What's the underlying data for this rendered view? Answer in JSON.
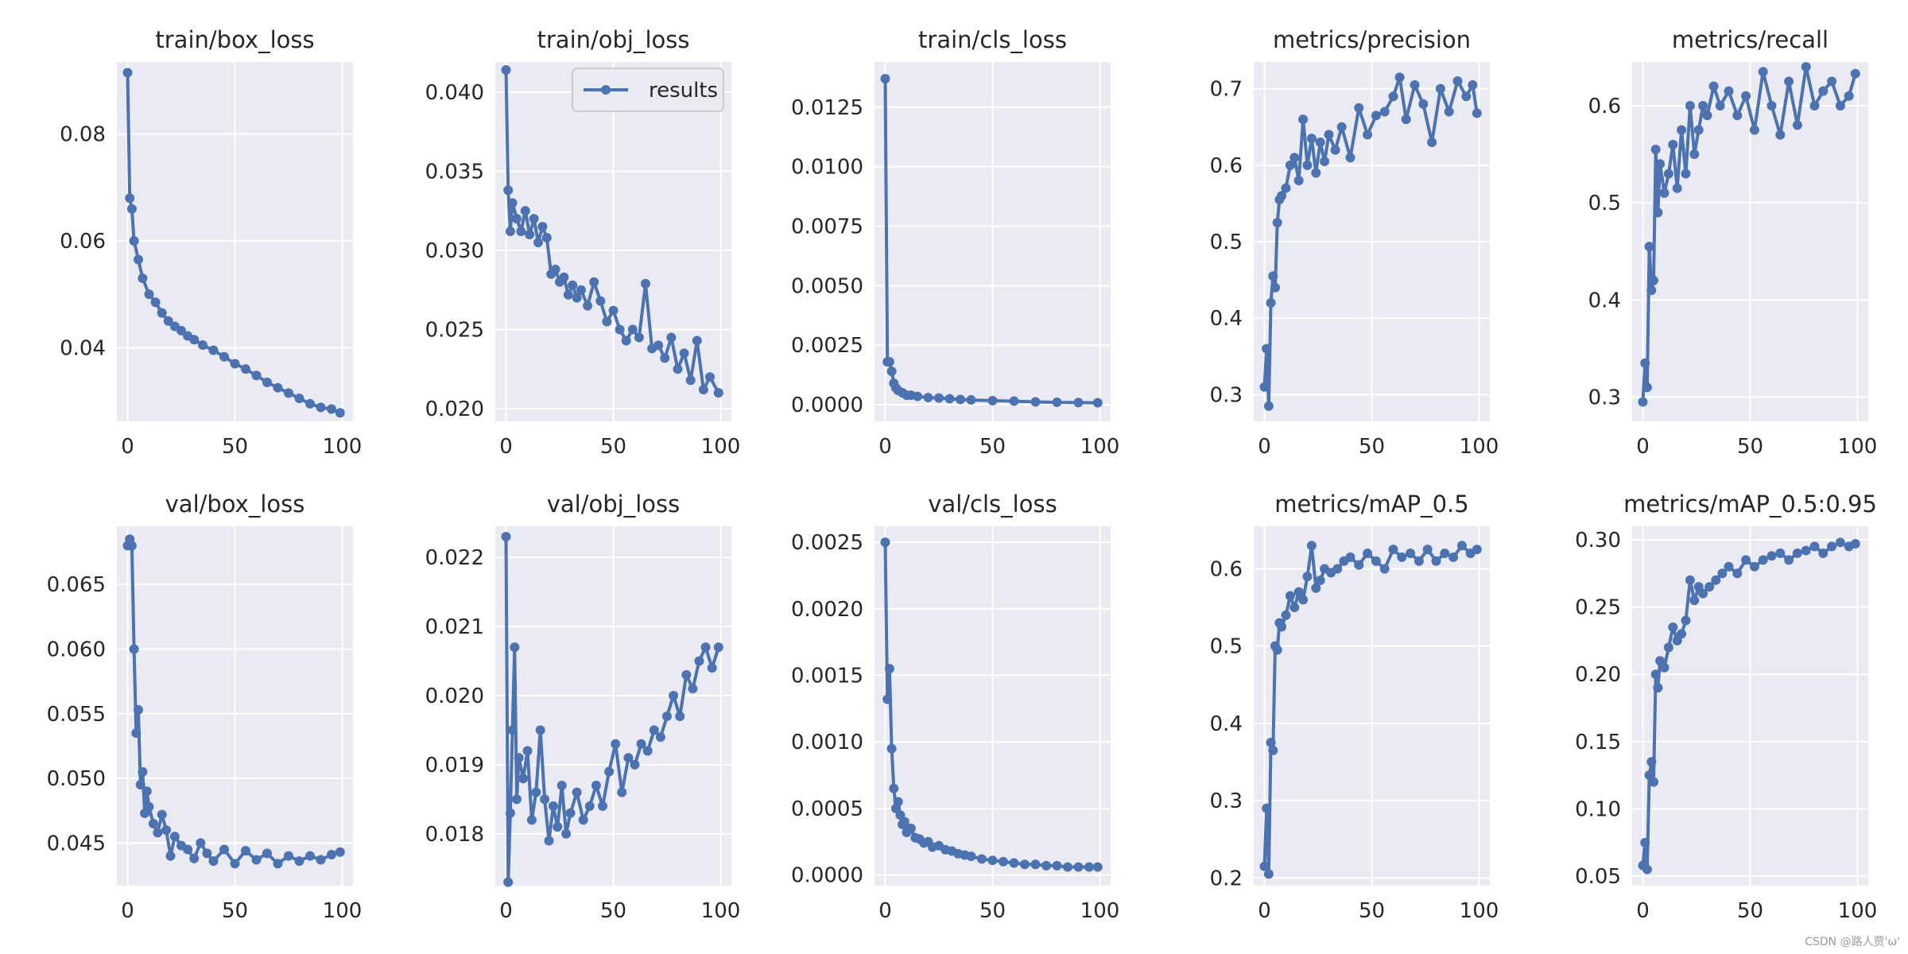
{
  "figure": {
    "watermark": "CSDN @路人贾'ω'",
    "line_color": "#4c72b0",
    "plot_bg": "#eaeaf2",
    "grid_color": "#ffffff"
  },
  "chart_data": [
    {
      "type": "line",
      "title": "train/box_loss",
      "xlabel": "",
      "ylabel": "",
      "xlim": [
        -5,
        105
      ],
      "ylim": [
        0.0262,
        0.0935
      ],
      "xticks": [
        0,
        50,
        100
      ],
      "xtick_labels": [
        "0",
        "50",
        "100"
      ],
      "yticks": [
        0.04,
        0.06,
        0.08
      ],
      "ytick_labels": [
        "0.04",
        "0.06",
        "0.08"
      ],
      "legend": [],
      "series": [
        {
          "name": "results",
          "x": [
            0,
            1,
            2,
            3,
            5,
            7,
            10,
            13,
            16,
            19,
            22,
            25,
            28,
            31,
            35,
            40,
            45,
            50,
            55,
            60,
            65,
            70,
            75,
            80,
            85,
            90,
            95,
            99
          ],
          "values": [
            0.0915,
            0.068,
            0.066,
            0.06,
            0.0565,
            0.053,
            0.05,
            0.0485,
            0.0465,
            0.045,
            0.044,
            0.0432,
            0.0422,
            0.0415,
            0.0405,
            0.0395,
            0.0383,
            0.037,
            0.036,
            0.0348,
            0.0335,
            0.0325,
            0.0315,
            0.0305,
            0.0295,
            0.0288,
            0.0285,
            0.0278
          ]
        }
      ]
    },
    {
      "type": "line",
      "title": "train/obj_loss",
      "xlabel": "",
      "ylabel": "",
      "xlim": [
        -5,
        105
      ],
      "ylim": [
        0.0192,
        0.0419
      ],
      "xticks": [
        0,
        50,
        100
      ],
      "xtick_labels": [
        "0",
        "50",
        "100"
      ],
      "yticks": [
        0.02,
        0.025,
        0.03,
        0.035,
        0.04
      ],
      "ytick_labels": [
        "0.020",
        "0.025",
        "0.030",
        "0.035",
        "0.040"
      ],
      "legend": [
        "results"
      ],
      "series": [
        {
          "name": "results",
          "x": [
            0,
            1,
            2,
            3,
            5,
            7,
            9,
            11,
            13,
            15,
            17,
            19,
            21,
            23,
            25,
            27,
            29,
            31,
            33,
            35,
            38,
            41,
            44,
            47,
            50,
            53,
            56,
            59,
            62,
            65,
            68,
            71,
            74,
            77,
            80,
            83,
            86,
            89,
            92,
            95,
            99
          ],
          "values": [
            0.0414,
            0.0338,
            0.0312,
            0.033,
            0.032,
            0.0312,
            0.0325,
            0.031,
            0.032,
            0.0305,
            0.0315,
            0.0308,
            0.0285,
            0.0288,
            0.028,
            0.0283,
            0.0272,
            0.0278,
            0.027,
            0.0275,
            0.0265,
            0.028,
            0.0268,
            0.0255,
            0.0262,
            0.025,
            0.0243,
            0.025,
            0.0245,
            0.0279,
            0.0238,
            0.024,
            0.0232,
            0.0245,
            0.0225,
            0.0235,
            0.0218,
            0.0243,
            0.0212,
            0.022,
            0.021
          ]
        }
      ]
    },
    {
      "type": "line",
      "title": "train/cls_loss",
      "xlabel": "",
      "ylabel": "",
      "xlim": [
        -5,
        105
      ],
      "ylim": [
        -0.0007,
        0.0144
      ],
      "xticks": [
        0,
        50,
        100
      ],
      "xtick_labels": [
        "0",
        "50",
        "100"
      ],
      "yticks": [
        0,
        0.0025,
        0.005,
        0.0075,
        0.01,
        0.0125
      ],
      "ytick_labels": [
        "0.0000",
        "0.0025",
        "0.0050",
        "0.0075",
        "0.0100",
        "0.0125"
      ],
      "legend": [],
      "series": [
        {
          "name": "results",
          "x": [
            0,
            1,
            2,
            3,
            4,
            5,
            6,
            8,
            10,
            12,
            15,
            20,
            25,
            30,
            35,
            40,
            50,
            60,
            70,
            80,
            90,
            99
          ],
          "values": [
            0.0137,
            0.0018,
            0.0018,
            0.0014,
            0.0009,
            0.0007,
            0.0006,
            0.0005,
            0.0004,
            0.0004,
            0.00035,
            0.0003,
            0.00028,
            0.00025,
            0.00022,
            0.0002,
            0.00017,
            0.00015,
            0.00012,
            0.0001,
            9e-05,
            8e-05
          ]
        }
      ]
    },
    {
      "type": "line",
      "title": "metrics/precision",
      "xlabel": "",
      "ylabel": "",
      "xlim": [
        -5,
        105
      ],
      "ylim": [
        0.265,
        0.735
      ],
      "xticks": [
        0,
        50,
        100
      ],
      "xtick_labels": [
        "0",
        "50",
        "100"
      ],
      "yticks": [
        0.3,
        0.4,
        0.5,
        0.6,
        0.7
      ],
      "ytick_labels": [
        "0.3",
        "0.4",
        "0.5",
        "0.6",
        "0.7"
      ],
      "legend": [],
      "series": [
        {
          "name": "results",
          "x": [
            0,
            1,
            2,
            3,
            4,
            5,
            6,
            7,
            8,
            10,
            12,
            14,
            16,
            18,
            20,
            22,
            24,
            26,
            28,
            30,
            33,
            36,
            40,
            44,
            48,
            52,
            56,
            60,
            63,
            66,
            70,
            74,
            78,
            82,
            86,
            90,
            94,
            97,
            99
          ],
          "values": [
            0.31,
            0.36,
            0.285,
            0.42,
            0.455,
            0.44,
            0.525,
            0.555,
            0.56,
            0.57,
            0.6,
            0.61,
            0.58,
            0.66,
            0.6,
            0.635,
            0.59,
            0.63,
            0.605,
            0.64,
            0.62,
            0.65,
            0.61,
            0.675,
            0.64,
            0.665,
            0.67,
            0.69,
            0.715,
            0.66,
            0.705,
            0.68,
            0.63,
            0.7,
            0.67,
            0.71,
            0.69,
            0.705,
            0.668
          ]
        }
      ]
    },
    {
      "type": "line",
      "title": "metrics/recall",
      "xlabel": "",
      "ylabel": "",
      "xlim": [
        -5,
        105
      ],
      "ylim": [
        0.275,
        0.645
      ],
      "xticks": [
        0,
        50,
        100
      ],
      "xtick_labels": [
        "0",
        "50",
        "100"
      ],
      "yticks": [
        0.3,
        0.4,
        0.5,
        0.6
      ],
      "ytick_labels": [
        "0.3",
        "0.4",
        "0.5",
        "0.6"
      ],
      "legend": [],
      "series": [
        {
          "name": "results",
          "x": [
            0,
            1,
            2,
            3,
            4,
            5,
            6,
            7,
            8,
            10,
            12,
            14,
            16,
            18,
            20,
            22,
            24,
            26,
            28,
            30,
            33,
            36,
            40,
            44,
            48,
            52,
            56,
            60,
            64,
            68,
            72,
            76,
            80,
            84,
            88,
            92,
            96,
            99
          ],
          "values": [
            0.295,
            0.335,
            0.31,
            0.455,
            0.41,
            0.42,
            0.555,
            0.49,
            0.54,
            0.51,
            0.53,
            0.56,
            0.515,
            0.575,
            0.53,
            0.6,
            0.55,
            0.575,
            0.6,
            0.59,
            0.62,
            0.6,
            0.615,
            0.59,
            0.61,
            0.575,
            0.635,
            0.6,
            0.57,
            0.625,
            0.58,
            0.64,
            0.6,
            0.615,
            0.625,
            0.6,
            0.61,
            0.633
          ]
        }
      ]
    },
    {
      "type": "line",
      "title": "val/box_loss",
      "xlabel": "",
      "ylabel": "",
      "xlim": [
        -5,
        105
      ],
      "ylim": [
        0.0417,
        0.0695
      ],
      "xticks": [
        0,
        50,
        100
      ],
      "xtick_labels": [
        "0",
        "50",
        "100"
      ],
      "yticks": [
        0.045,
        0.05,
        0.055,
        0.06,
        0.065
      ],
      "ytick_labels": [
        "0.045",
        "0.050",
        "0.055",
        "0.060",
        "0.065"
      ],
      "legend": [],
      "series": [
        {
          "name": "results",
          "x": [
            0,
            1,
            2,
            3,
            4,
            5,
            6,
            7,
            8,
            9,
            10,
            12,
            14,
            16,
            18,
            20,
            22,
            25,
            28,
            31,
            34,
            37,
            40,
            45,
            50,
            55,
            60,
            65,
            70,
            75,
            80,
            85,
            90,
            95,
            99
          ],
          "values": [
            0.068,
            0.0685,
            0.068,
            0.06,
            0.0535,
            0.0553,
            0.0495,
            0.0505,
            0.0473,
            0.049,
            0.0478,
            0.0465,
            0.0458,
            0.0472,
            0.046,
            0.044,
            0.0455,
            0.0448,
            0.0445,
            0.0438,
            0.045,
            0.0442,
            0.0436,
            0.0445,
            0.0434,
            0.0444,
            0.0437,
            0.0442,
            0.0434,
            0.044,
            0.0436,
            0.044,
            0.0437,
            0.0441,
            0.0443
          ]
        }
      ]
    },
    {
      "type": "line",
      "title": "val/obj_loss",
      "xlabel": "",
      "ylabel": "",
      "xlim": [
        -5,
        105
      ],
      "ylim": [
        0.01725,
        0.02245
      ],
      "xticks": [
        0,
        50,
        100
      ],
      "xtick_labels": [
        "0",
        "50",
        "100"
      ],
      "yticks": [
        0.018,
        0.019,
        0.02,
        0.021,
        0.022
      ],
      "ytick_labels": [
        "0.018",
        "0.019",
        "0.020",
        "0.021",
        "0.022"
      ],
      "legend": [],
      "series": [
        {
          "name": "results",
          "x": [
            0,
            1,
            2,
            3,
            4,
            5,
            6,
            8,
            10,
            12,
            14,
            16,
            18,
            20,
            22,
            24,
            26,
            28,
            30,
            33,
            36,
            39,
            42,
            45,
            48,
            51,
            54,
            57,
            60,
            63,
            66,
            69,
            72,
            75,
            78,
            81,
            84,
            87,
            90,
            93,
            96,
            99
          ],
          "values": [
            0.0223,
            0.0173,
            0.0183,
            0.0195,
            0.0207,
            0.0185,
            0.0191,
            0.0188,
            0.0192,
            0.0182,
            0.0186,
            0.0195,
            0.0185,
            0.0179,
            0.0184,
            0.0181,
            0.0187,
            0.018,
            0.0183,
            0.0186,
            0.0182,
            0.0184,
            0.0187,
            0.0184,
            0.0189,
            0.0193,
            0.0186,
            0.0191,
            0.019,
            0.0193,
            0.0192,
            0.0195,
            0.0194,
            0.0197,
            0.02,
            0.0197,
            0.0203,
            0.0201,
            0.0205,
            0.0207,
            0.0204,
            0.0207
          ]
        }
      ]
    },
    {
      "type": "line",
      "title": "val/cls_loss",
      "xlabel": "",
      "ylabel": "",
      "xlim": [
        -5,
        105
      ],
      "ylim": [
        -8e-05,
        0.00262
      ],
      "xticks": [
        0,
        50,
        100
      ],
      "xtick_labels": [
        "0",
        "50",
        "100"
      ],
      "yticks": [
        0,
        0.0005,
        0.001,
        0.0015,
        0.002,
        0.0025
      ],
      "ytick_labels": [
        "0.0000",
        "0.0005",
        "0.0010",
        "0.0015",
        "0.0020",
        "0.0025"
      ],
      "legend": [],
      "series": [
        {
          "name": "results",
          "x": [
            0,
            1,
            2,
            3,
            4,
            5,
            6,
            7,
            8,
            9,
            10,
            12,
            14,
            16,
            18,
            20,
            22,
            25,
            28,
            31,
            34,
            37,
            40,
            45,
            50,
            55,
            60,
            65,
            70,
            75,
            80,
            85,
            90,
            95,
            99
          ],
          "values": [
            0.0025,
            0.00132,
            0.00155,
            0.00095,
            0.00065,
            0.0005,
            0.00055,
            0.00045,
            0.00038,
            0.0004,
            0.00032,
            0.00035,
            0.00028,
            0.00027,
            0.00024,
            0.00025,
            0.00021,
            0.00022,
            0.00019,
            0.00018,
            0.00016,
            0.00015,
            0.00014,
            0.00012,
            0.00011,
            0.0001,
            9e-05,
            8e-05,
            8e-05,
            7e-05,
            7e-05,
            6e-05,
            6e-05,
            6e-05,
            6e-05
          ]
        }
      ]
    },
    {
      "type": "line",
      "title": "metrics/mAP_0.5",
      "xlabel": "",
      "ylabel": "",
      "xlim": [
        -5,
        105
      ],
      "ylim": [
        0.19,
        0.655
      ],
      "xticks": [
        0,
        50,
        100
      ],
      "xtick_labels": [
        "0",
        "50",
        "100"
      ],
      "yticks": [
        0.2,
        0.3,
        0.4,
        0.5,
        0.6
      ],
      "ytick_labels": [
        "0.2",
        "0.3",
        "0.4",
        "0.5",
        "0.6"
      ],
      "legend": [],
      "series": [
        {
          "name": "results",
          "x": [
            0,
            1,
            2,
            3,
            4,
            5,
            6,
            7,
            8,
            10,
            12,
            14,
            16,
            18,
            20,
            22,
            24,
            26,
            28,
            31,
            34,
            37,
            40,
            44,
            48,
            52,
            56,
            60,
            64,
            68,
            72,
            76,
            80,
            84,
            88,
            92,
            96,
            99
          ],
          "values": [
            0.215,
            0.29,
            0.205,
            0.375,
            0.365,
            0.5,
            0.495,
            0.53,
            0.525,
            0.54,
            0.565,
            0.55,
            0.57,
            0.56,
            0.59,
            0.63,
            0.575,
            0.585,
            0.6,
            0.595,
            0.6,
            0.61,
            0.615,
            0.605,
            0.62,
            0.61,
            0.6,
            0.625,
            0.615,
            0.62,
            0.61,
            0.625,
            0.61,
            0.62,
            0.615,
            0.63,
            0.62,
            0.625
          ]
        }
      ]
    },
    {
      "type": "line",
      "title": "metrics/mAP_0.5:0.95",
      "xlabel": "",
      "ylabel": "",
      "xlim": [
        -5,
        105
      ],
      "ylim": [
        0.043,
        0.31
      ],
      "xticks": [
        0,
        50,
        100
      ],
      "xtick_labels": [
        "0",
        "50",
        "100"
      ],
      "yticks": [
        0.05,
        0.1,
        0.15,
        0.2,
        0.25,
        0.3
      ],
      "ytick_labels": [
        "0.05",
        "0.10",
        "0.15",
        "0.20",
        "0.25",
        "0.30"
      ],
      "legend": [],
      "series": [
        {
          "name": "results",
          "x": [
            0,
            1,
            2,
            3,
            4,
            5,
            6,
            7,
            8,
            10,
            12,
            14,
            16,
            18,
            20,
            22,
            24,
            26,
            28,
            31,
            34,
            37,
            40,
            44,
            48,
            52,
            56,
            60,
            64,
            68,
            72,
            76,
            80,
            84,
            88,
            92,
            96,
            99
          ],
          "values": [
            0.058,
            0.075,
            0.055,
            0.125,
            0.135,
            0.12,
            0.2,
            0.19,
            0.21,
            0.205,
            0.22,
            0.235,
            0.225,
            0.23,
            0.24,
            0.27,
            0.255,
            0.265,
            0.26,
            0.265,
            0.27,
            0.275,
            0.28,
            0.275,
            0.285,
            0.28,
            0.285,
            0.288,
            0.29,
            0.285,
            0.29,
            0.292,
            0.295,
            0.29,
            0.295,
            0.298,
            0.295,
            0.297
          ]
        }
      ]
    }
  ]
}
